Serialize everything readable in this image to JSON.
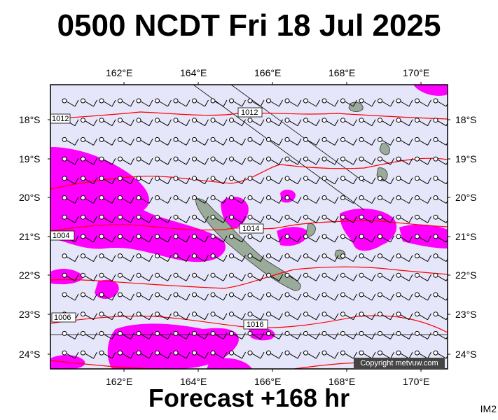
{
  "header": {
    "title": "0500 NCDT Fri 18 Jul 2025"
  },
  "footer": {
    "forecast": "Forecast +168 hr",
    "code": "IM2",
    "copyright": "Copyright metvuw.com"
  },
  "axes": {
    "x_labels": [
      "162°E",
      "164°E",
      "166°E",
      "168°E",
      "170°E"
    ],
    "y_labels": [
      "18°S",
      "19°S",
      "20°S",
      "21°S",
      "22°S",
      "23°S",
      "24°S"
    ]
  },
  "isobars": [
    {
      "label": "1012",
      "value": 1012
    },
    {
      "label": "1014",
      "value": 1014
    },
    {
      "label": "1016",
      "value": 1016
    },
    {
      "label": "1004",
      "value": 1004
    },
    {
      "label": "1006",
      "value": 1006
    },
    {
      "label": "1016",
      "value": 1016
    }
  ],
  "colors": {
    "ocean": "#e6e6fa",
    "rain": "#ff00ff",
    "isobar": "#ff0000",
    "land": "#9aab9a",
    "barb": "#000000"
  }
}
